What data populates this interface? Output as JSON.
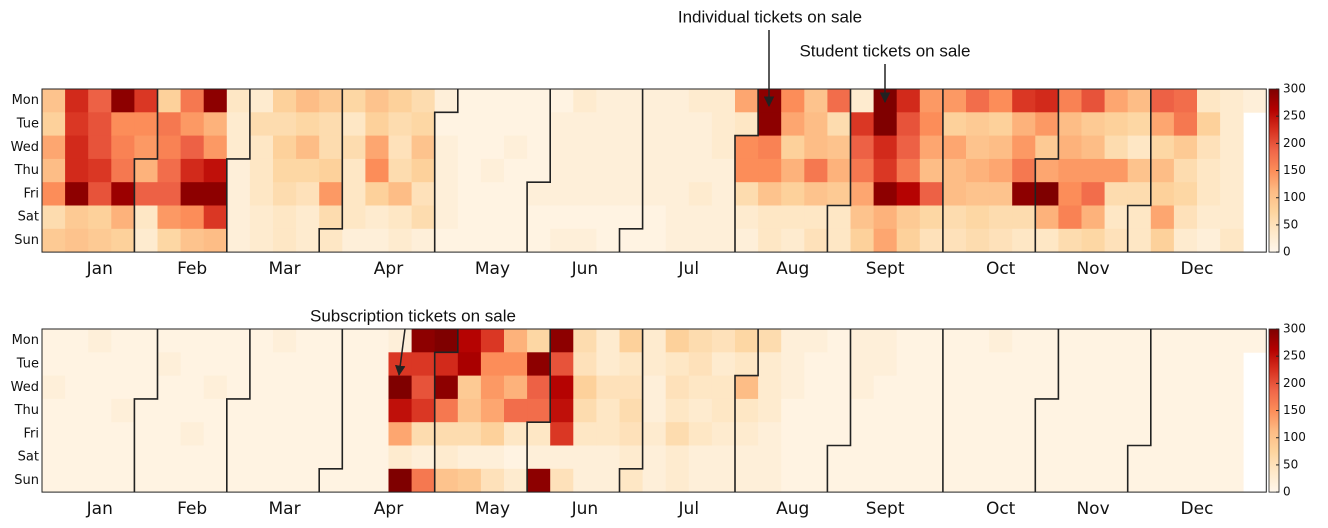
{
  "chart_data": [
    {
      "type": "heatmap",
      "rows": [
        "Mon",
        "Tue",
        "Wed",
        "Thu",
        "Fri",
        "Sat",
        "Sun"
      ],
      "categories": [
        "Jan",
        "Feb",
        "Mar",
        "Apr",
        "May",
        "Jun",
        "Jul",
        "Aug",
        "Sept",
        "Oct",
        "Nov",
        "Dec"
      ],
      "annotations": [
        "Individual tickets on sale",
        "Student tickets on sale"
      ],
      "colormap": [
        "#fff7ec",
        "#fee8c8",
        "#fdd49e",
        "#fdbb84",
        "#fc8d59",
        "#ef6548",
        "#d7301f",
        "#b30000",
        "#7f0000"
      ],
      "zlim": [
        0,
        300
      ],
      "zticks": [
        0,
        50,
        100,
        150,
        200,
        250,
        300
      ],
      "values": [
        [
          100,
          80,
          130,
          110,
          150,
          60,
          90
        ],
        [
          230,
          220,
          230,
          230,
          290,
          90,
          100
        ],
        [
          190,
          200,
          200,
          220,
          200,
          80,
          90
        ],
        [
          290,
          150,
          160,
          170,
          280,
          120,
          80
        ],
        [
          220,
          150,
          140,
          120,
          190,
          40,
          30
        ],
        [
          80,
          170,
          160,
          180,
          190,
          140,
          70
        ],
        [
          170,
          140,
          190,
          230,
          290,
          150,
          100
        ],
        [
          290,
          120,
          140,
          250,
          290,
          220,
          110
        ],
        [
          40,
          30,
          30,
          20,
          20,
          20,
          20
        ],
        [
          30,
          60,
          40,
          40,
          40,
          30,
          30
        ],
        [
          80,
          60,
          80,
          70,
          60,
          40,
          40
        ],
        [
          110,
          70,
          110,
          70,
          50,
          30,
          30
        ],
        [
          90,
          60,
          60,
          80,
          140,
          60,
          40
        ],
        [
          70,
          40,
          60,
          40,
          40,
          40,
          20
        ],
        [
          100,
          80,
          130,
          150,
          80,
          30,
          20
        ],
        [
          80,
          60,
          50,
          60,
          110,
          40,
          30
        ],
        [
          60,
          70,
          100,
          80,
          50,
          60,
          20
        ],
        [
          20,
          10,
          20,
          20,
          20,
          20,
          10
        ],
        [
          10,
          10,
          10,
          10,
          10,
          10,
          10
        ],
        [
          10,
          10,
          10,
          20,
          10,
          10,
          10
        ],
        [
          10,
          10,
          20,
          10,
          10,
          10,
          10
        ],
        [
          10,
          10,
          10,
          10,
          20,
          10,
          10
        ],
        [
          10,
          20,
          20,
          20,
          20,
          10,
          20
        ],
        [
          30,
          20,
          20,
          20,
          20,
          10,
          20
        ],
        [
          20,
          20,
          20,
          20,
          20,
          10,
          10
        ],
        [
          20,
          20,
          20,
          20,
          20,
          10,
          10
        ],
        [
          20,
          20,
          20,
          20,
          20,
          10,
          10
        ],
        [
          20,
          20,
          20,
          20,
          20,
          20,
          20
        ],
        [
          30,
          20,
          20,
          20,
          30,
          20,
          20
        ],
        [
          30,
          30,
          30,
          20,
          20,
          20,
          20
        ],
        [
          130,
          40,
          150,
          150,
          60,
          30,
          20
        ],
        [
          290,
          290,
          160,
          150,
          100,
          40,
          40
        ],
        [
          150,
          130,
          80,
          120,
          80,
          40,
          30
        ],
        [
          100,
          110,
          110,
          170,
          100,
          40,
          50
        ],
        [
          180,
          60,
          100,
          120,
          90,
          40,
          40
        ],
        [
          30,
          220,
          190,
          170,
          130,
          100,
          80
        ],
        [
          300,
          300,
          230,
          220,
          290,
          120,
          130
        ],
        [
          230,
          200,
          190,
          170,
          260,
          90,
          80
        ],
        [
          140,
          150,
          130,
          110,
          190,
          70,
          50
        ],
        [
          140,
          80,
          130,
          110,
          110,
          60,
          50
        ],
        [
          180,
          90,
          100,
          120,
          100,
          70,
          60
        ],
        [
          150,
          80,
          110,
          130,
          100,
          60,
          50
        ],
        [
          220,
          120,
          140,
          170,
          290,
          60,
          40
        ],
        [
          230,
          140,
          90,
          130,
          300,
          120,
          40
        ],
        [
          160,
          110,
          120,
          140,
          150,
          160,
          60
        ],
        [
          200,
          90,
          110,
          140,
          180,
          120,
          70
        ],
        [
          130,
          80,
          60,
          140,
          60,
          40,
          50
        ],
        [
          110,
          70,
          40,
          100,
          60,
          40,
          40
        ],
        [
          190,
          130,
          70,
          110,
          80,
          130,
          80
        ],
        [
          180,
          170,
          90,
          60,
          70,
          50,
          30
        ],
        [
          40,
          80,
          50,
          40,
          40,
          30,
          20
        ],
        [
          30,
          30,
          30,
          30,
          30,
          30,
          40
        ],
        [
          20,
          null,
          null,
          null,
          null,
          null,
          null
        ]
      ]
    },
    {
      "type": "heatmap",
      "rows": [
        "Mon",
        "Tue",
        "Wed",
        "Thu",
        "Fri",
        "Sat",
        "Sun"
      ],
      "categories": [
        "Jan",
        "Feb",
        "Mar",
        "Apr",
        "May",
        "Jun",
        "Jul",
        "Aug",
        "Sept",
        "Oct",
        "Nov",
        "Dec"
      ],
      "annotations": [
        "Subscription tickets on sale"
      ],
      "colormap": [
        "#fff7ec",
        "#fee8c8",
        "#fdd49e",
        "#fdbb84",
        "#fc8d59",
        "#ef6548",
        "#d7301f",
        "#b30000",
        "#7f0000"
      ],
      "zlim": [
        0,
        300
      ],
      "zticks": [
        0,
        50,
        100,
        150,
        200,
        250,
        300
      ],
      "values": [
        [
          10,
          10,
          20,
          10,
          10,
          10,
          10
        ],
        [
          10,
          10,
          10,
          10,
          10,
          10,
          10
        ],
        [
          20,
          10,
          10,
          10,
          10,
          10,
          10
        ],
        [
          10,
          10,
          10,
          20,
          10,
          10,
          10
        ],
        [
          10,
          10,
          10,
          10,
          10,
          10,
          10
        ],
        [
          10,
          20,
          10,
          10,
          10,
          10,
          10
        ],
        [
          10,
          10,
          10,
          10,
          20,
          10,
          10
        ],
        [
          10,
          10,
          20,
          10,
          10,
          10,
          10
        ],
        [
          10,
          10,
          10,
          10,
          10,
          10,
          10
        ],
        [
          10,
          10,
          10,
          10,
          10,
          10,
          10
        ],
        [
          20,
          10,
          10,
          10,
          10,
          10,
          10
        ],
        [
          10,
          10,
          10,
          10,
          10,
          10,
          10
        ],
        [
          10,
          10,
          10,
          10,
          10,
          10,
          10
        ],
        [
          10,
          10,
          10,
          10,
          10,
          10,
          10
        ],
        [
          10,
          10,
          10,
          10,
          10,
          10,
          10
        ],
        [
          20,
          220,
          300,
          250,
          130,
          30,
          300
        ],
        [
          290,
          220,
          200,
          220,
          60,
          20,
          170
        ],
        [
          300,
          230,
          290,
          170,
          60,
          30,
          100
        ],
        [
          260,
          270,
          90,
          100,
          60,
          20,
          90
        ],
        [
          220,
          150,
          140,
          130,
          80,
          20,
          50
        ],
        [
          120,
          150,
          120,
          180,
          40,
          10,
          30
        ],
        [
          70,
          290,
          190,
          180,
          40,
          20,
          290
        ],
        [
          290,
          200,
          260,
          250,
          220,
          20,
          50
        ],
        [
          60,
          50,
          80,
          60,
          40,
          20,
          20
        ],
        [
          30,
          30,
          50,
          40,
          40,
          20,
          20
        ],
        [
          80,
          40,
          50,
          60,
          50,
          30,
          40
        ],
        [
          30,
          30,
          20,
          20,
          30,
          20,
          20
        ],
        [
          80,
          40,
          50,
          40,
          60,
          30,
          30
        ],
        [
          60,
          50,
          40,
          30,
          40,
          20,
          20
        ],
        [
          50,
          30,
          40,
          40,
          30,
          20,
          20
        ],
        [
          70,
          40,
          110,
          40,
          30,
          20,
          20
        ],
        [
          60,
          30,
          30,
          30,
          20,
          20,
          20
        ],
        [
          20,
          20,
          20,
          10,
          10,
          10,
          10
        ],
        [
          20,
          10,
          10,
          10,
          10,
          10,
          10
        ],
        [
          10,
          10,
          10,
          10,
          10,
          10,
          10
        ],
        [
          20,
          20,
          20,
          10,
          10,
          10,
          10
        ],
        [
          20,
          20,
          10,
          10,
          10,
          10,
          10
        ],
        [
          10,
          10,
          10,
          10,
          10,
          10,
          10
        ],
        [
          10,
          10,
          10,
          10,
          10,
          10,
          10
        ],
        [
          10,
          10,
          10,
          10,
          10,
          10,
          10
        ],
        [
          10,
          10,
          10,
          10,
          10,
          10,
          10
        ],
        [
          20,
          10,
          10,
          10,
          10,
          10,
          10
        ],
        [
          10,
          10,
          10,
          10,
          10,
          10,
          10
        ],
        [
          10,
          10,
          10,
          10,
          10,
          10,
          10
        ],
        [
          10,
          10,
          10,
          10,
          10,
          10,
          10
        ],
        [
          10,
          10,
          10,
          10,
          10,
          10,
          10
        ],
        [
          10,
          10,
          10,
          10,
          10,
          10,
          10
        ],
        [
          10,
          10,
          10,
          10,
          10,
          10,
          10
        ],
        [
          10,
          10,
          10,
          10,
          10,
          10,
          10
        ],
        [
          10,
          10,
          10,
          10,
          10,
          10,
          10
        ],
        [
          10,
          10,
          10,
          10,
          10,
          10,
          10
        ],
        [
          10,
          10,
          10,
          10,
          10,
          10,
          10
        ],
        [
          10,
          null,
          null,
          null,
          null,
          null,
          null
        ]
      ]
    }
  ]
}
